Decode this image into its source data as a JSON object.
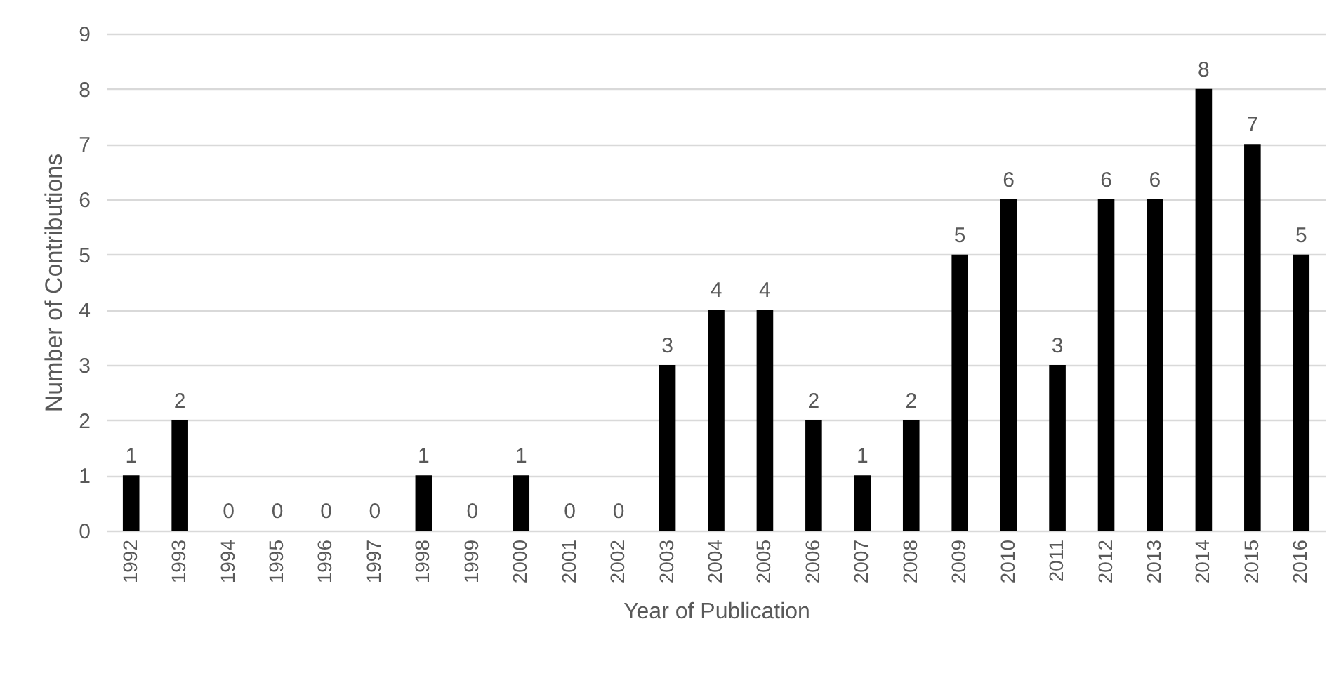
{
  "chart_data": {
    "type": "bar",
    "xlabel": "Year of Publication",
    "ylabel": "Number of Contributions",
    "categories": [
      "1992",
      "1993",
      "1994",
      "1995",
      "1996",
      "1997",
      "1998",
      "1999",
      "2000",
      "2001",
      "2002",
      "2003",
      "2004",
      "2005",
      "2006",
      "2007",
      "2008",
      "2009",
      "2010",
      "2011",
      "2012",
      "2013",
      "2014",
      "2015",
      "2016"
    ],
    "values": [
      1,
      2,
      0,
      0,
      0,
      0,
      1,
      0,
      1,
      0,
      0,
      3,
      4,
      4,
      2,
      1,
      2,
      5,
      6,
      3,
      6,
      6,
      8,
      7,
      5
    ],
    "color": "#000000",
    "ylim": [
      0,
      9
    ],
    "yticks": [
      0,
      1,
      2,
      3,
      4,
      5,
      6,
      7,
      8,
      9
    ],
    "grid": "y",
    "data_labels": true
  }
}
